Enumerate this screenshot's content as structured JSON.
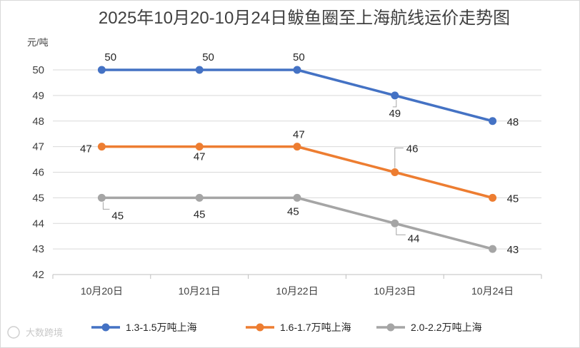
{
  "chart_data": {
    "type": "line",
    "title": "2025年10月20-10月24日鲅鱼圈至上海航线运价走势图",
    "ylabel": "元/吨",
    "xlabel": "",
    "ylim": [
      42,
      50
    ],
    "yticks": [
      42,
      43,
      44,
      45,
      46,
      47,
      48,
      49,
      50
    ],
    "categories": [
      "10月20日",
      "10月21日",
      "10月22日",
      "10月23日",
      "10月24日"
    ],
    "grid": true,
    "legend_position": "bottom",
    "series": [
      {
        "name": "1.3-1.5万吨上海",
        "color": "#4472c4",
        "values": [
          50,
          50,
          50,
          49,
          48
        ]
      },
      {
        "name": "1.6-1.7万吨上海",
        "color": "#ed7d31",
        "values": [
          47,
          47,
          47,
          46,
          45
        ]
      },
      {
        "name": "2.0-2.2万吨上海",
        "color": "#a5a5a5",
        "values": [
          45,
          45,
          45,
          44,
          43
        ]
      }
    ]
  },
  "watermark": "大数跨境"
}
